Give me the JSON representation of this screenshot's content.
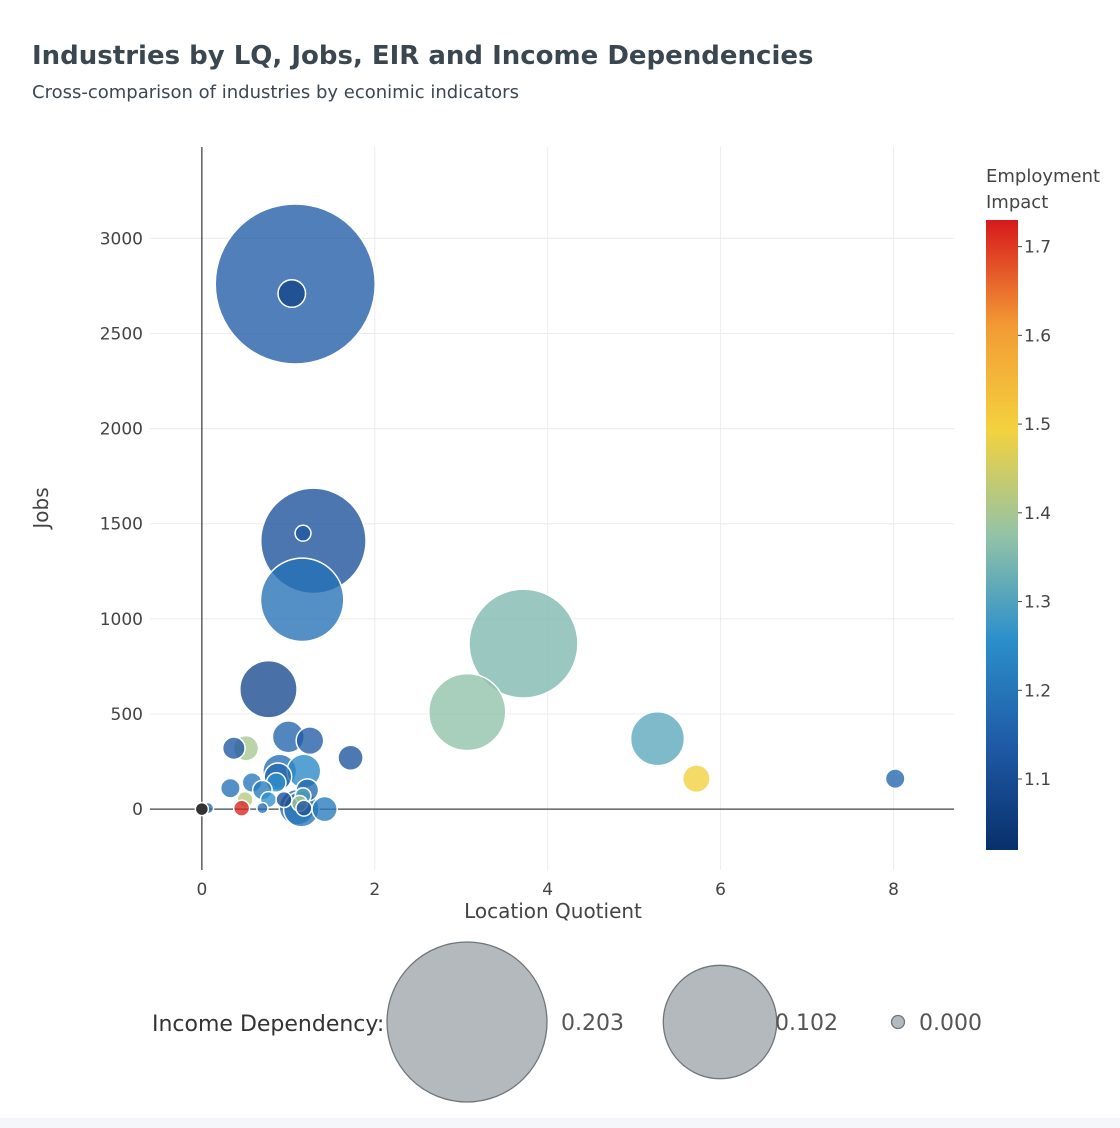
{
  "chart_data": {
    "type": "scatter",
    "title": "Industries by LQ, Jobs, EIR and Income Dependencies",
    "subtitle": "Cross-comparison of industries by econimic indicators",
    "xlabel": "Location Quotient",
    "ylabel": "Jobs",
    "xlim": [
      -0.6,
      8.7
    ],
    "ylim": [
      -320,
      3480
    ],
    "x_ticks": [
      0,
      2,
      4,
      6,
      8
    ],
    "y_ticks": [
      0,
      500,
      1000,
      1500,
      2000,
      2500,
      3000
    ],
    "grid": true,
    "size_variable": "Income Dependency",
    "color_variable": "Employment Impact",
    "colorbar": {
      "title_lines": [
        "Employment",
        "Impact"
      ],
      "min": 1.02,
      "max": 1.73,
      "ticks": [
        1.1,
        1.2,
        1.3,
        1.4,
        1.5,
        1.6,
        1.7
      ],
      "tick_labels": [
        "1.1",
        "1.2",
        "1.3",
        "1.4",
        "1.5",
        "1.6",
        "1.7"
      ],
      "colors": [
        "#08306b",
        "#1f5aa6",
        "#2b8fcb",
        "#93c3a6",
        "#f3d23e",
        "#f39a35",
        "#d7191c"
      ]
    },
    "size_legend": {
      "label": "Income Dependency:",
      "entries": [
        {
          "value": 0.203,
          "text": "0.203"
        },
        {
          "value": 0.102,
          "text": "0.102"
        },
        {
          "value": 0.0,
          "text": "0.000"
        }
      ]
    },
    "points": [
      {
        "lq": 1.08,
        "jobs": 2760,
        "dependency": 0.203,
        "eir": 1.14
      },
      {
        "lq": 1.04,
        "jobs": 2710,
        "dependency": 0.006,
        "eir": 1.08
      },
      {
        "lq": 1.29,
        "jobs": 1410,
        "dependency": 0.088,
        "eir": 1.11
      },
      {
        "lq": 1.17,
        "jobs": 1450,
        "dependency": 0.002,
        "eir": 1.13
      },
      {
        "lq": 1.16,
        "jobs": 1100,
        "dependency": 0.055,
        "eir": 1.19
      },
      {
        "lq": 3.72,
        "jobs": 870,
        "dependency": 0.094,
        "eir": 1.35
      },
      {
        "lq": 3.07,
        "jobs": 510,
        "dependency": 0.047,
        "eir": 1.37
      },
      {
        "lq": 0.77,
        "jobs": 630,
        "dependency": 0.026,
        "eir": 1.09
      },
      {
        "lq": 5.27,
        "jobs": 370,
        "dependency": 0.023,
        "eir": 1.31
      },
      {
        "lq": 5.72,
        "jobs": 160,
        "dependency": 0.006,
        "eir": 1.5
      },
      {
        "lq": 8.02,
        "jobs": 160,
        "dependency": 0.003,
        "eir": 1.16
      },
      {
        "lq": 1.0,
        "jobs": 380,
        "dependency": 0.008,
        "eir": 1.16
      },
      {
        "lq": 1.25,
        "jobs": 360,
        "dependency": 0.006,
        "eir": 1.14
      },
      {
        "lq": 0.51,
        "jobs": 320,
        "dependency": 0.005,
        "eir": 1.4
      },
      {
        "lq": 0.37,
        "jobs": 320,
        "dependency": 0.004,
        "eir": 1.13
      },
      {
        "lq": 1.72,
        "jobs": 270,
        "dependency": 0.005,
        "eir": 1.12
      },
      {
        "lq": 0.9,
        "jobs": 200,
        "dependency": 0.009,
        "eir": 1.18
      },
      {
        "lq": 1.18,
        "jobs": 200,
        "dependency": 0.009,
        "eir": 1.24
      },
      {
        "lq": 0.88,
        "jobs": 170,
        "dependency": 0.006,
        "eir": 1.17
      },
      {
        "lq": 0.58,
        "jobs": 140,
        "dependency": 0.003,
        "eir": 1.2
      },
      {
        "lq": 0.86,
        "jobs": 140,
        "dependency": 0.003,
        "eir": 1.26
      },
      {
        "lq": 0.33,
        "jobs": 110,
        "dependency": 0.003,
        "eir": 1.19
      },
      {
        "lq": 0.7,
        "jobs": 100,
        "dependency": 0.003,
        "eir": 1.21
      },
      {
        "lq": 1.22,
        "jobs": 100,
        "dependency": 0.004,
        "eir": 1.17
      },
      {
        "lq": 1.17,
        "jobs": 70,
        "dependency": 0.002,
        "eir": 1.3
      },
      {
        "lq": 0.77,
        "jobs": 50,
        "dependency": 0.002,
        "eir": 1.26
      },
      {
        "lq": 0.95,
        "jobs": 50,
        "dependency": 0.002,
        "eir": 1.1
      },
      {
        "lq": 0.5,
        "jobs": 50,
        "dependency": 0.002,
        "eir": 1.42
      },
      {
        "lq": 1.13,
        "jobs": 30,
        "dependency": 0.002,
        "eir": 1.4
      },
      {
        "lq": 1.1,
        "jobs": 10,
        "dependency": 0.01,
        "eir": 1.18
      },
      {
        "lq": 1.15,
        "jobs": 0,
        "dependency": 0.01,
        "eir": 1.2
      },
      {
        "lq": 1.42,
        "jobs": 0,
        "dependency": 0.005,
        "eir": 1.21
      },
      {
        "lq": 1.18,
        "jobs": 5,
        "dependency": 0.002,
        "eir": 1.12
      },
      {
        "lq": 0.7,
        "jobs": 5,
        "dependency": 0.001,
        "eir": 1.18
      },
      {
        "lq": 0.46,
        "jobs": 5,
        "dependency": 0.002,
        "eir": 1.72
      },
      {
        "lq": 0.07,
        "jobs": 5,
        "dependency": 0.001,
        "eir": 1.17
      },
      {
        "lq": 0.0,
        "jobs": 0,
        "dependency": 0.001,
        "eir": null
      }
    ]
  }
}
